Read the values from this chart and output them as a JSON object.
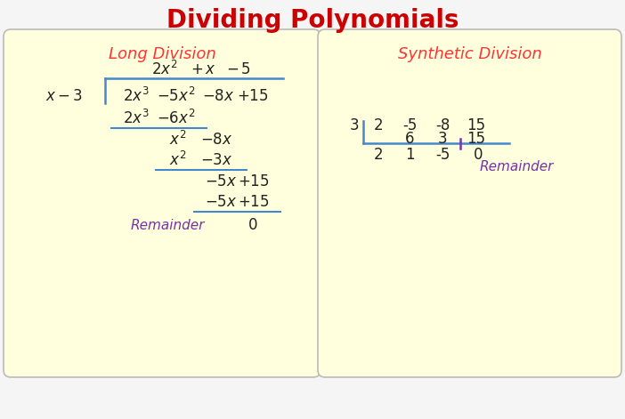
{
  "title": "Dividing Polynomials",
  "title_color": "#cc0000",
  "title_fontsize": 20,
  "bg_color": "#f5f5f5",
  "panel_color": "#ffffdd",
  "panel_edge_color": "#bbbbbb",
  "left_panel_label": "Long Division",
  "right_panel_label": "Synthetic Division",
  "panel_label_color": "#ff3333",
  "math_color": "#222222",
  "blue_color": "#4488cc",
  "purple_color": "#7733aa",
  "remainder_color": "#7733aa"
}
